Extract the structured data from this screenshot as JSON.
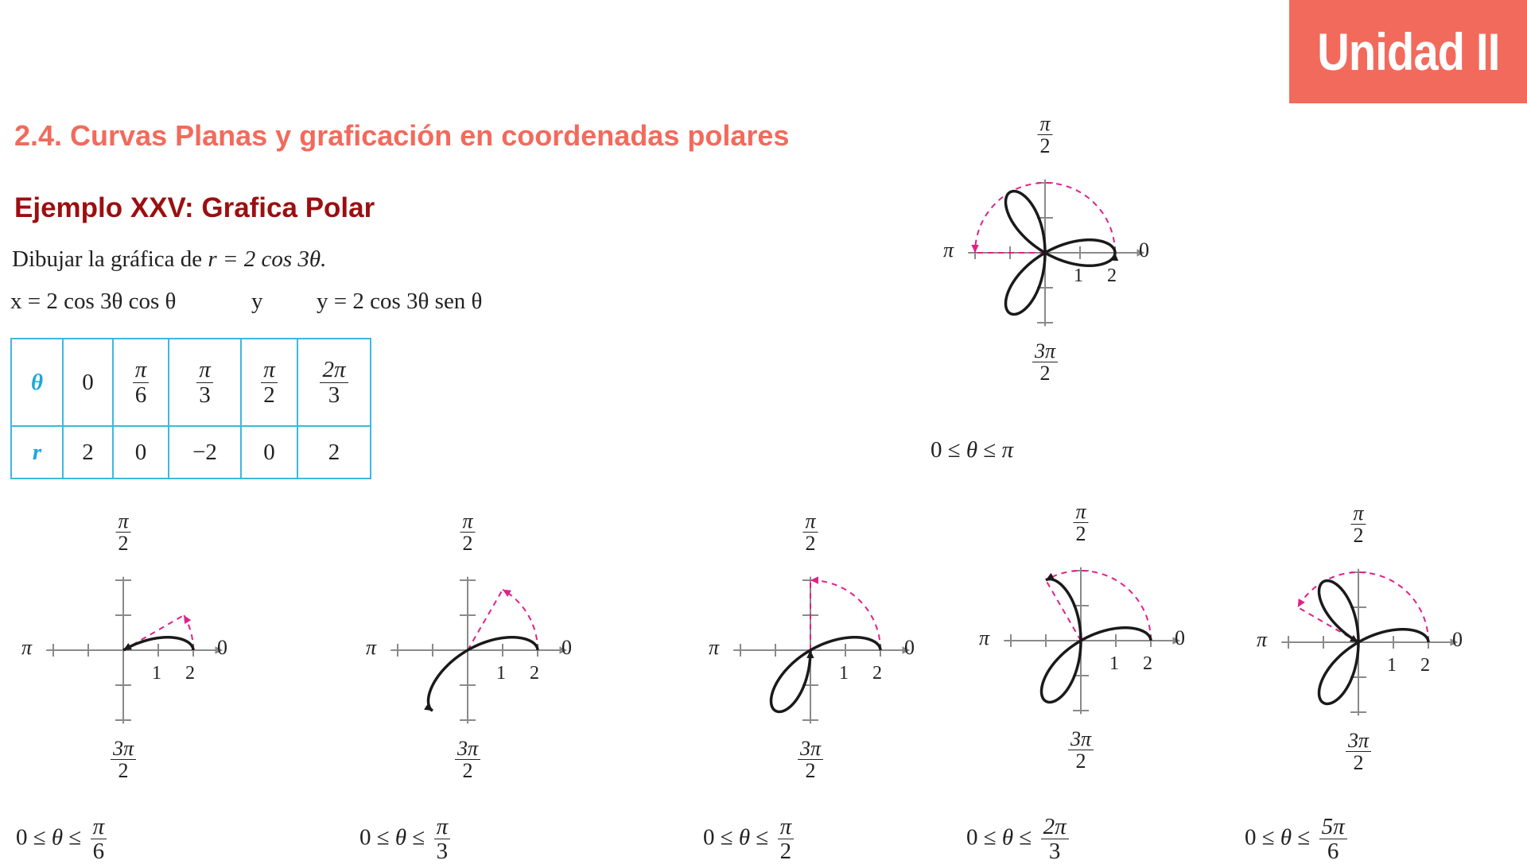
{
  "badge": {
    "label": "Unidad II"
  },
  "section_title": "2.4. Curvas Planas y graficación en coordenadas polares",
  "example_title": "Ejemplo XXV: Grafica Polar",
  "statement": {
    "text": "Dibujar la gráfica de ",
    "equation": "r = 2 cos 3θ."
  },
  "parametric": {
    "x_eq": "x = 2 cos 3θ cos θ",
    "connector": "y",
    "y_eq": "y = 2 cos 3θ sen θ"
  },
  "table": {
    "theta_header": "θ",
    "r_header": "r",
    "theta": [
      {
        "num": "0",
        "den": ""
      },
      {
        "num": "π",
        "den": "6"
      },
      {
        "num": "π",
        "den": "3"
      },
      {
        "num": "π",
        "den": "2"
      },
      {
        "num": "2π",
        "den": "3"
      }
    ],
    "r": [
      "2",
      "0",
      "−2",
      "0",
      "2"
    ]
  },
  "axis_labels": {
    "top_num": "π",
    "top_den": "2",
    "bottom_num": "3π",
    "bottom_den": "2",
    "left": "π",
    "right": "0",
    "tick1": "1",
    "tick2": "2"
  },
  "colors": {
    "curve": "#1a1a1a",
    "sweep": "#e0218a",
    "axis": "#8a8a8a",
    "accent": "#f26a5c",
    "table_border": "#3fb7e0"
  },
  "chart_data": {
    "type": "line",
    "equation": "r = 2 cos 3θ",
    "graphs": [
      {
        "caption_prefix": "0 ≤ θ ≤ ",
        "caption_num": "π",
        "caption_den": "",
        "theta_max_over_pi": 1
      },
      {
        "caption_prefix": "0 ≤ θ ≤ ",
        "caption_num": "π",
        "caption_den": "6",
        "theta_max_over_pi": 0.16667
      },
      {
        "caption_prefix": "0 ≤ θ ≤ ",
        "caption_num": "π",
        "caption_den": "3",
        "theta_max_over_pi": 0.33333
      },
      {
        "caption_prefix": "0 ≤ θ ≤ ",
        "caption_num": "π",
        "caption_den": "2",
        "theta_max_over_pi": 0.5
      },
      {
        "caption_prefix": "0 ≤ θ ≤ ",
        "caption_num": "2π",
        "caption_den": "3",
        "theta_max_over_pi": 0.66667
      },
      {
        "caption_prefix": "0 ≤ θ ≤ ",
        "caption_num": "5π",
        "caption_den": "6",
        "theta_max_over_pi": 0.83333
      }
    ],
    "r_ticks": [
      1,
      2
    ]
  }
}
